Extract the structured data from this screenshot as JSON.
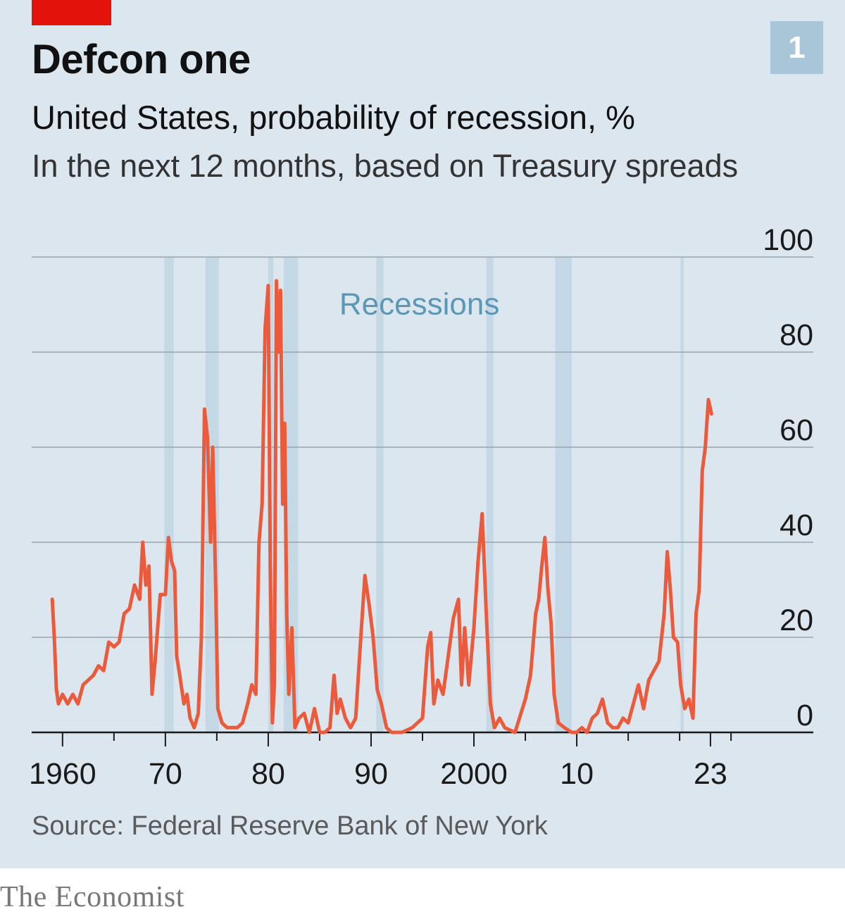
{
  "header": {
    "title": "Defcon one",
    "subtitle": "United States, probability of recession, %",
    "subsubtitle": "In the next 12 months, based on Treasury spreads",
    "badge": "1"
  },
  "footer": {
    "source": "Source: Federal Reserve Bank of New York",
    "brand": "The Economist"
  },
  "colors": {
    "background": "#dbe6ee",
    "brand_red": "#e3120b",
    "line": "#ec5a3c",
    "recession_band": "#c4d8e6",
    "annotation": "#5b98b8",
    "badge": "#a9c6d9",
    "grid": "#9aa4ab",
    "axis": "#1a1a1a"
  },
  "chart_data": {
    "type": "line",
    "title": "Defcon one",
    "ylim": [
      0,
      100
    ],
    "xlim": [
      1957,
      2033
    ],
    "grid": true,
    "y_axis_side": "right",
    "y_ticks": [
      0,
      20,
      40,
      60,
      80,
      100
    ],
    "x_ticks": [
      {
        "value": 1960,
        "label": "1960"
      },
      {
        "value": 1970,
        "label": "70"
      },
      {
        "value": 1980,
        "label": "80"
      },
      {
        "value": 1990,
        "label": "90"
      },
      {
        "value": 2000,
        "label": "2000"
      },
      {
        "value": 2010,
        "label": "10"
      },
      {
        "value": 2023,
        "label": "23"
      }
    ],
    "annotation": "Recessions",
    "recessions": [
      [
        1969.9,
        1970.8
      ],
      [
        1973.9,
        1975.2
      ],
      [
        1980.0,
        1980.5
      ],
      [
        1981.5,
        1982.9
      ],
      [
        1990.5,
        1991.2
      ],
      [
        2001.2,
        2001.9
      ],
      [
        2007.9,
        2009.5
      ],
      [
        2020.1,
        2020.4
      ]
    ],
    "series": [
      {
        "values": [
          [
            1959.0,
            28
          ],
          [
            1959.2,
            20
          ],
          [
            1959.4,
            9
          ],
          [
            1959.6,
            6
          ],
          [
            1960.0,
            8
          ],
          [
            1960.5,
            6
          ],
          [
            1961.0,
            8
          ],
          [
            1961.5,
            6
          ],
          [
            1962.0,
            10
          ],
          [
            1962.5,
            11
          ],
          [
            1963.0,
            12
          ],
          [
            1963.5,
            14
          ],
          [
            1964.0,
            13
          ],
          [
            1964.5,
            19
          ],
          [
            1965.0,
            18
          ],
          [
            1965.5,
            19
          ],
          [
            1966.0,
            25
          ],
          [
            1966.5,
            26
          ],
          [
            1967.0,
            31
          ],
          [
            1967.5,
            28
          ],
          [
            1967.8,
            40
          ],
          [
            1968.1,
            31
          ],
          [
            1968.4,
            35
          ],
          [
            1968.7,
            8
          ],
          [
            1969.0,
            15
          ],
          [
            1969.5,
            29
          ],
          [
            1970.0,
            29
          ],
          [
            1970.3,
            41
          ],
          [
            1970.6,
            36
          ],
          [
            1970.9,
            34
          ],
          [
            1971.1,
            16
          ],
          [
            1971.4,
            12
          ],
          [
            1971.8,
            6
          ],
          [
            1972.1,
            8
          ],
          [
            1972.4,
            3
          ],
          [
            1972.8,
            1
          ],
          [
            1973.2,
            4
          ],
          [
            1973.5,
            20
          ],
          [
            1973.8,
            68
          ],
          [
            1974.1,
            62
          ],
          [
            1974.4,
            40
          ],
          [
            1974.6,
            60
          ],
          [
            1974.9,
            30
          ],
          [
            1975.1,
            5
          ],
          [
            1975.5,
            2
          ],
          [
            1976.0,
            1
          ],
          [
            1976.5,
            1
          ],
          [
            1977.0,
            1
          ],
          [
            1977.5,
            2
          ],
          [
            1978.0,
            6
          ],
          [
            1978.4,
            10
          ],
          [
            1978.8,
            8
          ],
          [
            1979.1,
            40
          ],
          [
            1979.4,
            48
          ],
          [
            1979.7,
            85
          ],
          [
            1980.0,
            94
          ],
          [
            1980.2,
            35
          ],
          [
            1980.4,
            2
          ],
          [
            1980.6,
            10
          ],
          [
            1980.8,
            95
          ],
          [
            1981.0,
            80
          ],
          [
            1981.2,
            93
          ],
          [
            1981.4,
            48
          ],
          [
            1981.6,
            65
          ],
          [
            1981.8,
            25
          ],
          [
            1982.0,
            8
          ],
          [
            1982.3,
            22
          ],
          [
            1982.6,
            1
          ],
          [
            1983.0,
            3
          ],
          [
            1983.5,
            4
          ],
          [
            1984.0,
            0
          ],
          [
            1984.5,
            5
          ],
          [
            1985.0,
            0
          ],
          [
            1985.5,
            0
          ],
          [
            1986.0,
            1
          ],
          [
            1986.4,
            12
          ],
          [
            1986.7,
            4
          ],
          [
            1987.0,
            7
          ],
          [
            1987.5,
            3
          ],
          [
            1988.0,
            1
          ],
          [
            1988.5,
            3
          ],
          [
            1989.0,
            20
          ],
          [
            1989.4,
            33
          ],
          [
            1989.8,
            27
          ],
          [
            1990.2,
            20
          ],
          [
            1990.6,
            9
          ],
          [
            1991.0,
            6
          ],
          [
            1991.5,
            1
          ],
          [
            1992.0,
            0
          ],
          [
            1993.0,
            0
          ],
          [
            1994.0,
            1
          ],
          [
            1995.0,
            3
          ],
          [
            1995.5,
            18
          ],
          [
            1995.8,
            21
          ],
          [
            1996.1,
            6
          ],
          [
            1996.5,
            11
          ],
          [
            1997.0,
            8
          ],
          [
            1997.5,
            16
          ],
          [
            1998.0,
            24
          ],
          [
            1998.5,
            28
          ],
          [
            1998.8,
            10
          ],
          [
            1999.1,
            22
          ],
          [
            1999.5,
            10
          ],
          [
            2000.0,
            22
          ],
          [
            2000.4,
            36
          ],
          [
            2000.8,
            46
          ],
          [
            2001.2,
            25
          ],
          [
            2001.6,
            6
          ],
          [
            2002.0,
            1
          ],
          [
            2002.5,
            3
          ],
          [
            2003.0,
            1
          ],
          [
            2004.0,
            0
          ],
          [
            2005.0,
            7
          ],
          [
            2005.5,
            12
          ],
          [
            2006.0,
            25
          ],
          [
            2006.3,
            28
          ],
          [
            2006.6,
            35
          ],
          [
            2006.9,
            41
          ],
          [
            2007.2,
            30
          ],
          [
            2007.5,
            23
          ],
          [
            2007.8,
            8
          ],
          [
            2008.2,
            2
          ],
          [
            2008.8,
            1
          ],
          [
            2009.5,
            0
          ],
          [
            2010.0,
            0
          ],
          [
            2010.5,
            1
          ],
          [
            2011.0,
            0
          ],
          [
            2011.5,
            3
          ],
          [
            2012.0,
            4
          ],
          [
            2012.5,
            7
          ],
          [
            2013.0,
            2
          ],
          [
            2013.5,
            1
          ],
          [
            2014.0,
            1
          ],
          [
            2014.5,
            3
          ],
          [
            2015.0,
            2
          ],
          [
            2015.5,
            6
          ],
          [
            2016.0,
            10
          ],
          [
            2016.5,
            5
          ],
          [
            2017.0,
            11
          ],
          [
            2017.5,
            13
          ],
          [
            2018.0,
            15
          ],
          [
            2018.5,
            25
          ],
          [
            2018.8,
            38
          ],
          [
            2019.1,
            30
          ],
          [
            2019.4,
            20
          ],
          [
            2019.8,
            19
          ],
          [
            2020.1,
            10
          ],
          [
            2020.5,
            5
          ],
          [
            2020.9,
            7
          ],
          [
            2021.3,
            3
          ],
          [
            2021.6,
            25
          ],
          [
            2021.9,
            30
          ],
          [
            2022.2,
            55
          ],
          [
            2022.5,
            60
          ],
          [
            2022.8,
            70
          ],
          [
            2023.1,
            67
          ]
        ]
      }
    ]
  }
}
